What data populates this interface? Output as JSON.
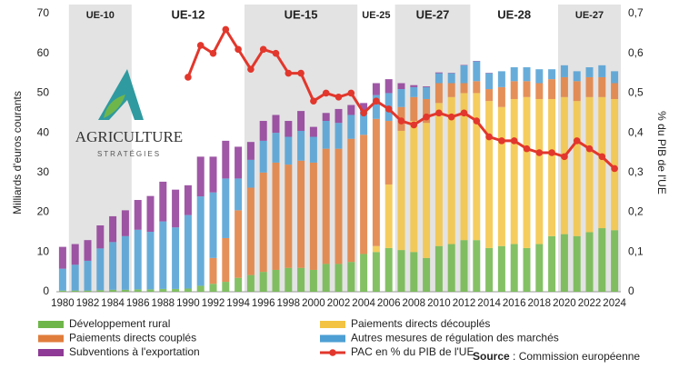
{
  "chart_data": {
    "type": "bar",
    "stacked": true,
    "ylabel": "Milliards d'euros courants",
    "y2label": "% du PIB de l'UE",
    "x": [
      1980,
      1981,
      1982,
      1983,
      1984,
      1985,
      1986,
      1987,
      1988,
      1989,
      1990,
      1991,
      1992,
      1993,
      1994,
      1995,
      1996,
      1997,
      1998,
      1999,
      2000,
      2001,
      2002,
      2003,
      2004,
      2005,
      2006,
      2007,
      2008,
      2009,
      2010,
      2011,
      2012,
      2013,
      2014,
      2015,
      2016,
      2017,
      2018,
      2019,
      2020,
      2021,
      2022,
      2023,
      2024
    ],
    "xlim": [
      1979.5,
      2024.5
    ],
    "xticks": [
      1980,
      1982,
      1984,
      1986,
      1988,
      1990,
      1992,
      1994,
      1996,
      1998,
      2000,
      2002,
      2004,
      2006,
      2008,
      2010,
      2012,
      2014,
      2016,
      2018,
      2020,
      2022,
      2024
    ],
    "ylim": [
      0,
      70
    ],
    "yticks": [
      0,
      10,
      20,
      30,
      40,
      50,
      60,
      70
    ],
    "y2lim": [
      0,
      0.7
    ],
    "y2ticks": [
      0,
      {
        "value": 0.1,
        "label": "0,1"
      },
      {
        "value": 0.2,
        "label": "0,2"
      },
      {
        "value": 0.3,
        "label": "0,3"
      },
      {
        "value": 0.4,
        "label": "0,4"
      },
      {
        "value": 0.5,
        "label": "0,5"
      },
      {
        "value": 0.6,
        "label": "0,6"
      },
      {
        "value": 0.7,
        "label": "0,7"
      }
    ],
    "series": [
      {
        "name": "Développement rural",
        "color": "#6fb64a",
        "values": [
          0.3,
          0.3,
          0.3,
          0.4,
          0.5,
          0.5,
          0.6,
          0.6,
          0.7,
          0.7,
          0.8,
          1.5,
          2,
          2.5,
          3.5,
          4.2,
          5,
          5.5,
          6,
          6,
          5.5,
          7,
          7,
          7.5,
          9.5,
          10,
          11,
          10.5,
          10,
          8.5,
          11.5,
          12,
          13,
          13,
          11,
          11.5,
          12,
          11,
          12,
          14,
          14.5,
          14,
          15,
          16,
          15.5
        ]
      },
      {
        "name": "Paiements directs découplés",
        "color": "#f3c443",
        "values": [
          0,
          0,
          0,
          0,
          0,
          0,
          0,
          0,
          0,
          0,
          0,
          0,
          0,
          0,
          0,
          0,
          0,
          0,
          0,
          0,
          0,
          0,
          0,
          0,
          0,
          1.5,
          16,
          30,
          33,
          34,
          36,
          37,
          37,
          37,
          37,
          35,
          36.5,
          38,
          36.5,
          34.5,
          34.5,
          34,
          34,
          33,
          33
        ]
      },
      {
        "name": "Paiements directs couplés",
        "color": "#e07d3c",
        "values": [
          0,
          0,
          0,
          0,
          0,
          0,
          0,
          0,
          0,
          0,
          0,
          0,
          6.5,
          11,
          17,
          22,
          25,
          27,
          26,
          27,
          27,
          29,
          29,
          31,
          30,
          32,
          16,
          6,
          6,
          6,
          5,
          3.5,
          2.5,
          3,
          3,
          5,
          4.5,
          4,
          4,
          5,
          5,
          5,
          5,
          5,
          4
        ]
      },
      {
        "name": "Autres mesures de régulation des marchés",
        "color": "#4d9fd4",
        "values": [
          5.5,
          6.5,
          7.5,
          10.5,
          12,
          13.5,
          15,
          14.5,
          17,
          15.5,
          18.5,
          22.5,
          16.5,
          15,
          8,
          7,
          8,
          7.5,
          7,
          7.5,
          6.5,
          7,
          6.5,
          6,
          6,
          6,
          7,
          4.5,
          2.5,
          3,
          2.5,
          2.5,
          4.5,
          5,
          4,
          4,
          3.5,
          3.5,
          3.5,
          2.5,
          3,
          2.5,
          2.5,
          3,
          3
        ]
      },
      {
        "name": "Subventions à l'exportation",
        "color": "#8e3a96",
        "values": [
          5.5,
          5.2,
          5.2,
          5.8,
          6.5,
          6.5,
          7.5,
          9,
          10,
          9.5,
          7.5,
          10,
          9,
          9.5,
          8,
          4.5,
          5,
          4.5,
          4,
          5,
          2.5,
          2,
          3.5,
          2.5,
          2,
          3,
          3.5,
          1.5,
          0.5,
          0.2,
          0.2,
          0.1,
          0.1,
          0.1,
          0.1,
          0,
          0,
          0,
          0,
          0,
          0,
          0,
          0,
          0,
          0
        ]
      },
      {
        "name": "PAC en % du PIB de l'UE",
        "type": "line",
        "axis": "y2",
        "color": "#e2372c",
        "values": [
          null,
          null,
          null,
          null,
          null,
          null,
          null,
          null,
          null,
          null,
          0.54,
          0.62,
          0.6,
          0.66,
          0.61,
          0.56,
          0.61,
          0.6,
          0.55,
          0.55,
          0.48,
          0.5,
          0.49,
          0.5,
          0.45,
          0.48,
          0.46,
          0.43,
          0.42,
          0.44,
          0.45,
          0.44,
          0.45,
          0.43,
          0.39,
          0.38,
          0.38,
          0.36,
          0.35,
          0.35,
          0.34,
          0.38,
          0.36,
          0.34,
          0.31
        ]
      }
    ]
  },
  "eras": [
    {
      "label": "UE-10",
      "from": 1981,
      "to": 1985
    },
    {
      "label": "UE-12",
      "from": 1986,
      "to": 1994
    },
    {
      "label": "UE-15",
      "from": 1995,
      "to": 2003
    },
    {
      "label": "UE-25",
      "from": 2004,
      "to": 2006
    },
    {
      "label": "UE-27",
      "from": 2007,
      "to": 2012
    },
    {
      "label": "UE-28",
      "from": 2013,
      "to": 2019
    },
    {
      "label": "UE-27",
      "from": 2020,
      "to": 2024
    }
  ],
  "logo": {
    "title": "AGRICULTURE",
    "subtitle": "STRATÉGIES"
  },
  "source": {
    "label": "Source",
    "text": ": Commission européenne"
  }
}
